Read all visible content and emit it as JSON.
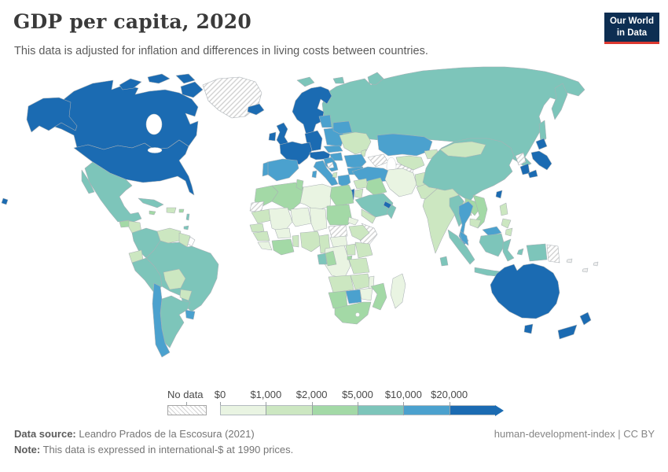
{
  "header": {
    "title": "GDP per capita, 2020",
    "subtitle": "This data is adjusted for inflation and differences in living costs between countries."
  },
  "logo": {
    "line1": "Our World",
    "line2": "in Data",
    "bg_color": "#0d2e52",
    "accent_color": "#dc3930"
  },
  "legend": {
    "no_data_label": "No data",
    "tick_labels": [
      "$0",
      "$1,000",
      "$2,000",
      "$5,000",
      "$10,000",
      "$20,000"
    ],
    "bucket_colors": [
      "#e9f4e2",
      "#cce7c1",
      "#a3d9a6",
      "#7dc5ba",
      "#4ba1ce",
      "#1b6bb2"
    ],
    "no_data_pattern": "diagonal-hatch"
  },
  "footer": {
    "source_label": "Data source:",
    "source_value": " Leandro Prados de la Escosura (2021)",
    "note_label": "Note:",
    "note_value": " This data is expressed in international-$ at 1990 prices.",
    "right_text": "human-development-index | CC BY"
  },
  "chart_data": {
    "type": "choropleth",
    "title": "GDP per capita, 2020",
    "unit": "international-$ at 1990 prices",
    "legend_thresholds": [
      "$0",
      "$1,000",
      "$2,000",
      "$5,000",
      "$10,000",
      "$20,000"
    ],
    "bucket_ranges": [
      "$0–1,000",
      "$1,000–2,000",
      "$2,000–5,000",
      "$5,000–10,000",
      "$10,000–20,000",
      "over $20,000"
    ],
    "countries": {
      "usa": 5,
      "canada": 5,
      "greenland": "no-data",
      "iceland": 5,
      "mexico": 3,
      "guatemala": 2,
      "honduras_nicaragua": 1,
      "costa_rica_panama": 3,
      "cuba": 3,
      "hispaniola": 1,
      "jamaica": 2,
      "puerto_rico": 2,
      "lesser_antilles": 3,
      "trinidad": 3,
      "colombia": 3,
      "venezuela": 1,
      "guyana_suriname": 1,
      "french_guiana": "none",
      "ecuador": 1,
      "peru": 3,
      "brazil": 3,
      "bolivia": 1,
      "paraguay": 1,
      "chile": 4,
      "argentina": 3,
      "uruguay": 4,
      "scandinavia": 5,
      "denmark": 5,
      "uk": 5,
      "ireland": 5,
      "france": 5,
      "germany": 5,
      "switzerland_austria": 5,
      "spain": 4,
      "portugal": 4,
      "italy": 4,
      "poland": 4,
      "czechia_slovakia": 4,
      "hungary": 4,
      "baltics": 4,
      "belarus": 4,
      "ukraine": 1,
      "moldova": 1,
      "romania": 4,
      "bulgaria": 4,
      "croatia_serbia": 4,
      "bosnia": "no-data",
      "albania": 1,
      "greece": 4,
      "russia": 3,
      "svalbard": 3,
      "kazakhstan": 4,
      "uzbekistan": 1,
      "turkmenistan": "no-data",
      "kyrgyzstan_tajikistan": 1,
      "caucasus": "no-data",
      "turkey": 4,
      "syria": 1,
      "israel": 5,
      "jordan": 1,
      "iraq": 2,
      "saudi_arabia": 3,
      "yemen": 1,
      "oman": 3,
      "uae_qatar": 5,
      "iran": 0,
      "afghanistan": 1,
      "pakistan": 1,
      "kashmir": "no-data",
      "india": 1,
      "bangladesh": 1,
      "sri_lanka": 3,
      "myanmar": 3,
      "thailand": 4,
      "laos": 2,
      "vietnam": 2,
      "cambodia": 1,
      "malaysia": 4,
      "indonesia": 3,
      "philippines": 1,
      "china": 3,
      "mongolia": 1,
      "north_korea": "no-data",
      "south_korea": 5,
      "japan": 5,
      "taiwan": 5,
      "morocco": 2,
      "western_sahara": "no-data",
      "algeria": 2,
      "tunisia": 2,
      "libya": 0,
      "egypt": 2,
      "mauritania": 1,
      "mali": 0,
      "niger": 0,
      "chad": 0,
      "sudan": 2,
      "eritrea": 0,
      "ethiopia": 1,
      "somalia": "no-data",
      "south_sudan": "no-data",
      "senegal": 1,
      "guinea": 1,
      "sierra_leone_liberia": 0,
      "ivory_coast_ghana": 2,
      "burkina_faso": 0,
      "togo_benin": 1,
      "nigeria": 1,
      "cameroon": 1,
      "central_african_republic": 0,
      "dr_congo": 0,
      "gabon": 3,
      "congo": 2,
      "uganda": 1,
      "kenya": 1,
      "tanzania": 1,
      "rwanda_burundi": 2,
      "angola": 1,
      "zambia": 1,
      "malawi": 0,
      "mozambique": 2,
      "zimbabwe": 0,
      "botswana": 4,
      "namibia": 2,
      "south_africa": 2,
      "madagascar": 0,
      "australia": 5,
      "new_zealand": 5,
      "papua_new_guinea": "no-data"
    }
  }
}
